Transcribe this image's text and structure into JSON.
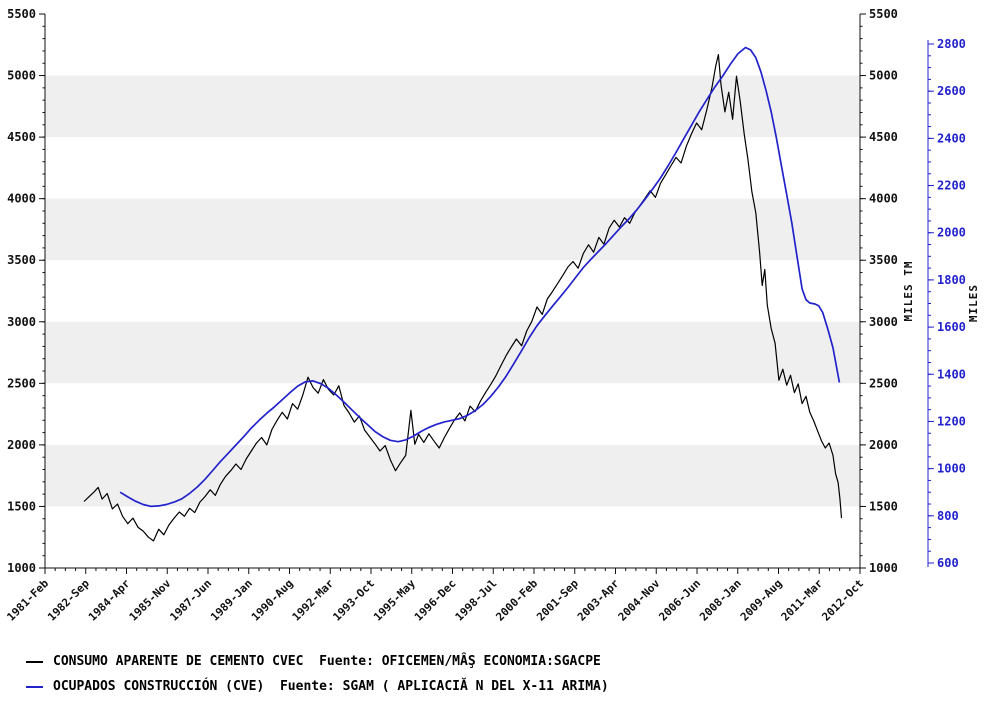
{
  "legend": {
    "items": [
      {
        "label": "CONSUMO APARENTE DE CEMENTO CVEC  Fuente: OFICEMEN/MÂŞ ECONOMIA:SGACPE",
        "color": "#000000"
      },
      {
        "label": "OCUPADOS CONSTRUCCIÓN (CVE)  Fuente: SGAM ( APLICACIĂ N DEL X-11 ARIMA)",
        "color": "#2222cc"
      }
    ]
  },
  "chart_data": {
    "type": "line",
    "title": "",
    "grid": "horizontal-bands",
    "plot": {
      "background": "#ffffff",
      "band_color": "#efefef",
      "band_ranges": [
        [
          1500,
          2000
        ],
        [
          2500,
          3000
        ],
        [
          3500,
          4000
        ],
        [
          4500,
          5000
        ]
      ]
    },
    "x_axis": {
      "labels": [
        "1981-Feb",
        "1982-Sep",
        "1984-Apr",
        "1985-Nov",
        "1987-Jun",
        "1989-Jan",
        "1990-Aug",
        "1992-Mar",
        "1993-Oct",
        "1995-May",
        "1996-Dec",
        "1998-Jul",
        "2000-Feb",
        "2001-Sep",
        "2003-Apr",
        "2004-Nov",
        "2006-Jun",
        "2008-Jan",
        "2009-Aug",
        "2011-Mar",
        "2012-Oct"
      ],
      "start": 1981.083,
      "end": 2012.75,
      "label_step_months": 19
    },
    "left_axis": {
      "title": "MILES TM",
      "min": 1000,
      "max": 5500,
      "tick_step": 500,
      "minor_step": 100,
      "color": "#111111",
      "duplicated_on_right": true
    },
    "right_axis": {
      "title": "MILES",
      "min": 600,
      "max": 2800,
      "tick_step": 200,
      "minor_step": 50,
      "color": "#2222cc"
    },
    "series": [
      {
        "name": "CONSUMO APARENTE DE CEMENTO CVEC",
        "axis": "left",
        "color": "#000000",
        "points": [
          [
            1982.6,
            1540
          ],
          [
            1982.8,
            1580
          ],
          [
            1983.0,
            1620
          ],
          [
            1983.15,
            1655
          ],
          [
            1983.3,
            1560
          ],
          [
            1983.5,
            1605
          ],
          [
            1983.7,
            1480
          ],
          [
            1983.9,
            1520
          ],
          [
            1984.1,
            1420
          ],
          [
            1984.3,
            1360
          ],
          [
            1984.5,
            1405
          ],
          [
            1984.7,
            1330
          ],
          [
            1984.9,
            1300
          ],
          [
            1985.1,
            1250
          ],
          [
            1985.3,
            1220
          ],
          [
            1985.5,
            1315
          ],
          [
            1985.7,
            1270
          ],
          [
            1985.9,
            1350
          ],
          [
            1986.1,
            1405
          ],
          [
            1986.3,
            1455
          ],
          [
            1986.5,
            1420
          ],
          [
            1986.7,
            1485
          ],
          [
            1986.9,
            1450
          ],
          [
            1987.1,
            1535
          ],
          [
            1987.3,
            1580
          ],
          [
            1987.5,
            1635
          ],
          [
            1987.7,
            1590
          ],
          [
            1987.9,
            1680
          ],
          [
            1988.1,
            1745
          ],
          [
            1988.3,
            1790
          ],
          [
            1988.5,
            1845
          ],
          [
            1988.7,
            1800
          ],
          [
            1988.9,
            1885
          ],
          [
            1989.1,
            1950
          ],
          [
            1989.3,
            2015
          ],
          [
            1989.5,
            2060
          ],
          [
            1989.7,
            2000
          ],
          [
            1989.9,
            2125
          ],
          [
            1990.1,
            2200
          ],
          [
            1990.3,
            2265
          ],
          [
            1990.5,
            2210
          ],
          [
            1990.7,
            2335
          ],
          [
            1990.9,
            2290
          ],
          [
            1991.1,
            2405
          ],
          [
            1991.3,
            2550
          ],
          [
            1991.5,
            2465
          ],
          [
            1991.7,
            2420
          ],
          [
            1991.9,
            2530
          ],
          [
            1992.1,
            2450
          ],
          [
            1992.3,
            2405
          ],
          [
            1992.5,
            2480
          ],
          [
            1992.7,
            2320
          ],
          [
            1992.9,
            2260
          ],
          [
            1993.1,
            2185
          ],
          [
            1993.3,
            2235
          ],
          [
            1993.5,
            2120
          ],
          [
            1993.7,
            2065
          ],
          [
            1993.9,
            2010
          ],
          [
            1994.1,
            1950
          ],
          [
            1994.3,
            1995
          ],
          [
            1994.5,
            1880
          ],
          [
            1994.7,
            1790
          ],
          [
            1994.9,
            1855
          ],
          [
            1995.1,
            1915
          ],
          [
            1995.3,
            2280
          ],
          [
            1995.45,
            2005
          ],
          [
            1995.6,
            2085
          ],
          [
            1995.8,
            2020
          ],
          [
            1996.0,
            2090
          ],
          [
            1996.2,
            2030
          ],
          [
            1996.4,
            1975
          ],
          [
            1996.6,
            2060
          ],
          [
            1996.8,
            2135
          ],
          [
            1997.0,
            2205
          ],
          [
            1997.2,
            2260
          ],
          [
            1997.4,
            2195
          ],
          [
            1997.6,
            2315
          ],
          [
            1997.8,
            2270
          ],
          [
            1998.0,
            2355
          ],
          [
            1998.2,
            2425
          ],
          [
            1998.4,
            2490
          ],
          [
            1998.6,
            2560
          ],
          [
            1998.8,
            2645
          ],
          [
            1999.0,
            2725
          ],
          [
            1999.2,
            2795
          ],
          [
            1999.4,
            2860
          ],
          [
            1999.6,
            2805
          ],
          [
            1999.8,
            2925
          ],
          [
            2000.0,
            3005
          ],
          [
            2000.2,
            3120
          ],
          [
            2000.4,
            3060
          ],
          [
            2000.6,
            3185
          ],
          [
            2000.8,
            3245
          ],
          [
            2001.0,
            3310
          ],
          [
            2001.2,
            3375
          ],
          [
            2001.4,
            3445
          ],
          [
            2001.6,
            3490
          ],
          [
            2001.8,
            3435
          ],
          [
            2002.0,
            3555
          ],
          [
            2002.2,
            3625
          ],
          [
            2002.4,
            3565
          ],
          [
            2002.6,
            3685
          ],
          [
            2002.8,
            3630
          ],
          [
            2003.0,
            3760
          ],
          [
            2003.2,
            3825
          ],
          [
            2003.4,
            3770
          ],
          [
            2003.6,
            3845
          ],
          [
            2003.8,
            3800
          ],
          [
            2004.0,
            3885
          ],
          [
            2004.2,
            3945
          ],
          [
            2004.4,
            4005
          ],
          [
            2004.6,
            4065
          ],
          [
            2004.8,
            4010
          ],
          [
            2005.0,
            4125
          ],
          [
            2005.2,
            4195
          ],
          [
            2005.4,
            4265
          ],
          [
            2005.6,
            4335
          ],
          [
            2005.8,
            4290
          ],
          [
            2006.0,
            4425
          ],
          [
            2006.2,
            4525
          ],
          [
            2006.4,
            4615
          ],
          [
            2006.6,
            4560
          ],
          [
            2006.8,
            4725
          ],
          [
            2007.0,
            4905
          ],
          [
            2007.15,
            5085
          ],
          [
            2007.25,
            5170
          ],
          [
            2007.35,
            4925
          ],
          [
            2007.5,
            4705
          ],
          [
            2007.65,
            4865
          ],
          [
            2007.8,
            4645
          ],
          [
            2007.95,
            4995
          ],
          [
            2008.1,
            4785
          ],
          [
            2008.25,
            4525
          ],
          [
            2008.4,
            4315
          ],
          [
            2008.55,
            4055
          ],
          [
            2008.7,
            3885
          ],
          [
            2008.85,
            3565
          ],
          [
            2008.95,
            3295
          ],
          [
            2009.05,
            3425
          ],
          [
            2009.15,
            3135
          ],
          [
            2009.3,
            2945
          ],
          [
            2009.45,
            2825
          ],
          [
            2009.6,
            2525
          ],
          [
            2009.75,
            2615
          ],
          [
            2009.9,
            2485
          ],
          [
            2010.05,
            2565
          ],
          [
            2010.2,
            2425
          ],
          [
            2010.35,
            2495
          ],
          [
            2010.5,
            2335
          ],
          [
            2010.65,
            2395
          ],
          [
            2010.8,
            2265
          ],
          [
            2010.95,
            2195
          ],
          [
            2011.1,
            2115
          ],
          [
            2011.25,
            2035
          ],
          [
            2011.4,
            1975
          ],
          [
            2011.55,
            2015
          ],
          [
            2011.7,
            1915
          ],
          [
            2011.8,
            1765
          ],
          [
            2011.9,
            1695
          ],
          [
            2011.97,
            1565
          ],
          [
            2012.03,
            1405
          ]
        ]
      },
      {
        "name": "OCUPADOS CONSTRUCCIÓN (CVE)",
        "axis": "right",
        "color": "#2222cc",
        "points": [
          [
            1984.0,
            900
          ],
          [
            1984.3,
            880
          ],
          [
            1984.6,
            862
          ],
          [
            1984.9,
            848
          ],
          [
            1985.2,
            840
          ],
          [
            1985.5,
            842
          ],
          [
            1985.8,
            848
          ],
          [
            1986.1,
            858
          ],
          [
            1986.4,
            872
          ],
          [
            1986.7,
            895
          ],
          [
            1987.0,
            922
          ],
          [
            1987.3,
            955
          ],
          [
            1987.6,
            992
          ],
          [
            1987.9,
            1030
          ],
          [
            1988.2,
            1065
          ],
          [
            1988.5,
            1100
          ],
          [
            1988.8,
            1135
          ],
          [
            1989.1,
            1172
          ],
          [
            1989.4,
            1205
          ],
          [
            1989.7,
            1235
          ],
          [
            1990.0,
            1262
          ],
          [
            1990.3,
            1292
          ],
          [
            1990.6,
            1322
          ],
          [
            1990.9,
            1350
          ],
          [
            1991.2,
            1368
          ],
          [
            1991.5,
            1372
          ],
          [
            1991.8,
            1360
          ],
          [
            1992.1,
            1340
          ],
          [
            1992.4,
            1312
          ],
          [
            1992.7,
            1282
          ],
          [
            1993.0,
            1250
          ],
          [
            1993.3,
            1218
          ],
          [
            1993.6,
            1188
          ],
          [
            1993.9,
            1158
          ],
          [
            1994.2,
            1136
          ],
          [
            1994.5,
            1120
          ],
          [
            1994.8,
            1114
          ],
          [
            1995.1,
            1122
          ],
          [
            1995.4,
            1138
          ],
          [
            1995.7,
            1158
          ],
          [
            1996.0,
            1175
          ],
          [
            1996.3,
            1188
          ],
          [
            1996.6,
            1198
          ],
          [
            1996.9,
            1205
          ],
          [
            1997.2,
            1212
          ],
          [
            1997.5,
            1226
          ],
          [
            1997.8,
            1246
          ],
          [
            1998.1,
            1272
          ],
          [
            1998.4,
            1306
          ],
          [
            1998.7,
            1346
          ],
          [
            1999.0,
            1392
          ],
          [
            1999.3,
            1445
          ],
          [
            1999.6,
            1500
          ],
          [
            1999.9,
            1556
          ],
          [
            2000.2,
            1606
          ],
          [
            2000.5,
            1648
          ],
          [
            2000.8,
            1688
          ],
          [
            2001.1,
            1728
          ],
          [
            2001.4,
            1768
          ],
          [
            2001.7,
            1810
          ],
          [
            2002.0,
            1852
          ],
          [
            2002.3,
            1888
          ],
          [
            2002.6,
            1922
          ],
          [
            2002.9,
            1956
          ],
          [
            2003.2,
            1992
          ],
          [
            2003.5,
            2028
          ],
          [
            2003.8,
            2062
          ],
          [
            2004.1,
            2100
          ],
          [
            2004.4,
            2142
          ],
          [
            2004.7,
            2186
          ],
          [
            2005.0,
            2232
          ],
          [
            2005.3,
            2285
          ],
          [
            2005.6,
            2340
          ],
          [
            2005.9,
            2398
          ],
          [
            2006.2,
            2455
          ],
          [
            2006.5,
            2512
          ],
          [
            2006.8,
            2565
          ],
          [
            2007.1,
            2616
          ],
          [
            2007.4,
            2662
          ],
          [
            2007.7,
            2712
          ],
          [
            2008.0,
            2758
          ],
          [
            2008.3,
            2785
          ],
          [
            2008.5,
            2775
          ],
          [
            2008.7,
            2742
          ],
          [
            2008.9,
            2682
          ],
          [
            2009.1,
            2602
          ],
          [
            2009.3,
            2512
          ],
          [
            2009.5,
            2402
          ],
          [
            2009.7,
            2282
          ],
          [
            2009.9,
            2162
          ],
          [
            2010.1,
            2042
          ],
          [
            2010.3,
            1902
          ],
          [
            2010.5,
            1762
          ],
          [
            2010.65,
            1716
          ],
          [
            2010.8,
            1702
          ],
          [
            2011.0,
            1698
          ],
          [
            2011.15,
            1690
          ],
          [
            2011.3,
            1662
          ],
          [
            2011.5,
            1592
          ],
          [
            2011.7,
            1512
          ],
          [
            2011.95,
            1365
          ]
        ]
      }
    ]
  }
}
